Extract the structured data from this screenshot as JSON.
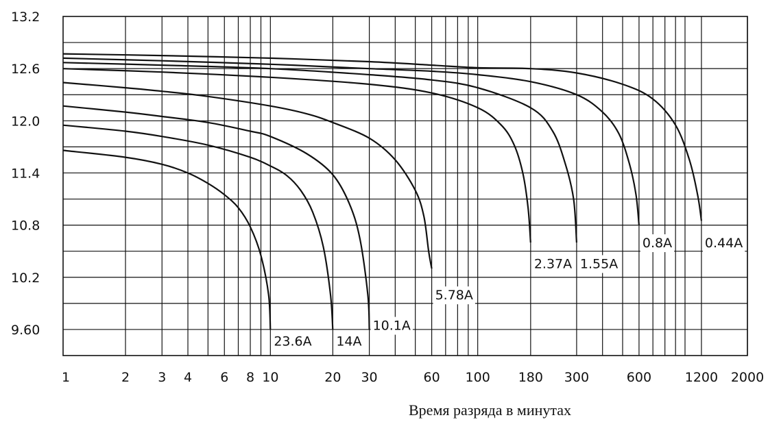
{
  "chart_data": {
    "type": "line",
    "x_scale": "log",
    "grid": true,
    "xlim": [
      1,
      2000
    ],
    "ylim": [
      9.3,
      13.2
    ],
    "yticks": [
      {
        "value": 13.2,
        "label": "13.2"
      },
      {
        "value": 12.6,
        "label": "12.6"
      },
      {
        "value": 12.0,
        "label": "12.0"
      },
      {
        "value": 11.4,
        "label": "11.4"
      },
      {
        "value": 10.8,
        "label": "10.8"
      },
      {
        "value": 10.2,
        "label": "10.2"
      },
      {
        "value": 9.6,
        "label": "9.60"
      }
    ],
    "y_gridlines": [
      12.9,
      12.6,
      12.3,
      12.0,
      11.7,
      11.4,
      11.1,
      10.8,
      10.5,
      10.2,
      9.9,
      9.6
    ],
    "xticks": [
      {
        "value": 1,
        "label": "1"
      },
      {
        "value": 2,
        "label": "2"
      },
      {
        "value": 3,
        "label": "3"
      },
      {
        "value": 4,
        "label": "4"
      },
      {
        "value": 6,
        "label": "6"
      },
      {
        "value": 8,
        "label": "8"
      },
      {
        "value": 10,
        "label": "10"
      },
      {
        "value": 20,
        "label": "20"
      },
      {
        "value": 30,
        "label": "30"
      },
      {
        "value": 60,
        "label": "60"
      },
      {
        "value": 100,
        "label": "100"
      },
      {
        "value": 180,
        "label": "180"
      },
      {
        "value": 300,
        "label": "300"
      },
      {
        "value": 600,
        "label": "600"
      },
      {
        "value": 1200,
        "label": "1200"
      },
      {
        "value": 2000,
        "label": "2000"
      }
    ],
    "x_gridlines": [
      2,
      3,
      4,
      5,
      6,
      7,
      8,
      9,
      10,
      20,
      30,
      40,
      50,
      60,
      70,
      80,
      90,
      100,
      180,
      300,
      400,
      500,
      600,
      700,
      800,
      900,
      1000,
      1200,
      2000
    ],
    "xlabel": "Время разряда в минутах",
    "ylabel": "",
    "series": [
      {
        "name": "23.6A",
        "end_x": 10,
        "points": [
          [
            1,
            11.66
          ],
          [
            2,
            11.58
          ],
          [
            3,
            11.5
          ],
          [
            4,
            11.4
          ],
          [
            5,
            11.28
          ],
          [
            6,
            11.15
          ],
          [
            7,
            11.0
          ],
          [
            8,
            10.78
          ],
          [
            9,
            10.45
          ],
          [
            9.8,
            10.0
          ],
          [
            10,
            9.6
          ]
        ]
      },
      {
        "name": "14A",
        "end_x": 20,
        "points": [
          [
            1,
            11.95
          ],
          [
            2,
            11.88
          ],
          [
            3,
            11.82
          ],
          [
            5,
            11.72
          ],
          [
            8,
            11.58
          ],
          [
            10,
            11.48
          ],
          [
            12,
            11.37
          ],
          [
            14,
            11.2
          ],
          [
            16,
            10.95
          ],
          [
            18,
            10.55
          ],
          [
            19.5,
            10.0
          ],
          [
            20,
            9.6
          ]
        ]
      },
      {
        "name": "10.1A",
        "end_x": 30,
        "points": [
          [
            1,
            12.17
          ],
          [
            2,
            12.1
          ],
          [
            3,
            12.05
          ],
          [
            5,
            11.98
          ],
          [
            8,
            11.88
          ],
          [
            10,
            11.82
          ],
          [
            15,
            11.62
          ],
          [
            20,
            11.38
          ],
          [
            24,
            11.05
          ],
          [
            27,
            10.65
          ],
          [
            29.5,
            10.0
          ],
          [
            30,
            9.6
          ]
        ]
      },
      {
        "name": "5.78A",
        "end_x": 60,
        "points": [
          [
            1,
            12.44
          ],
          [
            2,
            12.38
          ],
          [
            3,
            12.34
          ],
          [
            5,
            12.28
          ],
          [
            10,
            12.17
          ],
          [
            15,
            12.08
          ],
          [
            20,
            11.98
          ],
          [
            30,
            11.8
          ],
          [
            40,
            11.55
          ],
          [
            50,
            11.2
          ],
          [
            55,
            10.9
          ],
          [
            58,
            10.5
          ],
          [
            60,
            10.3
          ]
        ]
      },
      {
        "name": "2.37A",
        "end_x": 180,
        "points": [
          [
            1,
            12.6
          ],
          [
            3,
            12.56
          ],
          [
            10,
            12.5
          ],
          [
            30,
            12.42
          ],
          [
            60,
            12.32
          ],
          [
            100,
            12.15
          ],
          [
            130,
            11.95
          ],
          [
            150,
            11.72
          ],
          [
            165,
            11.4
          ],
          [
            175,
            11.0
          ],
          [
            180,
            10.6
          ]
        ]
      },
      {
        "name": "1.55A",
        "end_x": 300,
        "points": [
          [
            1,
            12.67
          ],
          [
            3,
            12.64
          ],
          [
            10,
            12.6
          ],
          [
            30,
            12.53
          ],
          [
            60,
            12.47
          ],
          [
            100,
            12.38
          ],
          [
            180,
            12.15
          ],
          [
            230,
            11.88
          ],
          [
            265,
            11.5
          ],
          [
            290,
            11.1
          ],
          [
            300,
            10.6
          ]
        ]
      },
      {
        "name": "0.8A",
        "end_x": 600,
        "points": [
          [
            1,
            12.72
          ],
          [
            3,
            12.69
          ],
          [
            10,
            12.65
          ],
          [
            30,
            12.6
          ],
          [
            60,
            12.57
          ],
          [
            100,
            12.53
          ],
          [
            180,
            12.45
          ],
          [
            300,
            12.3
          ],
          [
            400,
            12.1
          ],
          [
            480,
            11.85
          ],
          [
            540,
            11.5
          ],
          [
            580,
            11.15
          ],
          [
            600,
            10.8
          ]
        ]
      },
      {
        "name": "0.44A",
        "end_x": 1200,
        "points": [
          [
            1,
            12.77
          ],
          [
            3,
            12.75
          ],
          [
            10,
            12.72
          ],
          [
            30,
            12.68
          ],
          [
            60,
            12.64
          ],
          [
            100,
            12.61
          ],
          [
            180,
            12.6
          ],
          [
            300,
            12.55
          ],
          [
            500,
            12.42
          ],
          [
            700,
            12.25
          ],
          [
            900,
            11.95
          ],
          [
            1050,
            11.55
          ],
          [
            1150,
            11.15
          ],
          [
            1200,
            10.85
          ]
        ]
      }
    ],
    "curve_labels": [
      {
        "text": "23.6A",
        "x": 10,
        "y": 9.47
      },
      {
        "text": "14A",
        "x": 20,
        "y": 9.47
      },
      {
        "text": "10.1A",
        "x": 30,
        "y": 9.65
      },
      {
        "text": "5.78A",
        "x": 60,
        "y": 10.0
      },
      {
        "text": "2.37A",
        "x": 180,
        "y": 10.36
      },
      {
        "text": "1.55A",
        "x": 300,
        "y": 10.36
      },
      {
        "text": "0.8A",
        "x": 600,
        "y": 10.6
      },
      {
        "text": "0.44A",
        "x": 1200,
        "y": 10.6
      }
    ]
  }
}
